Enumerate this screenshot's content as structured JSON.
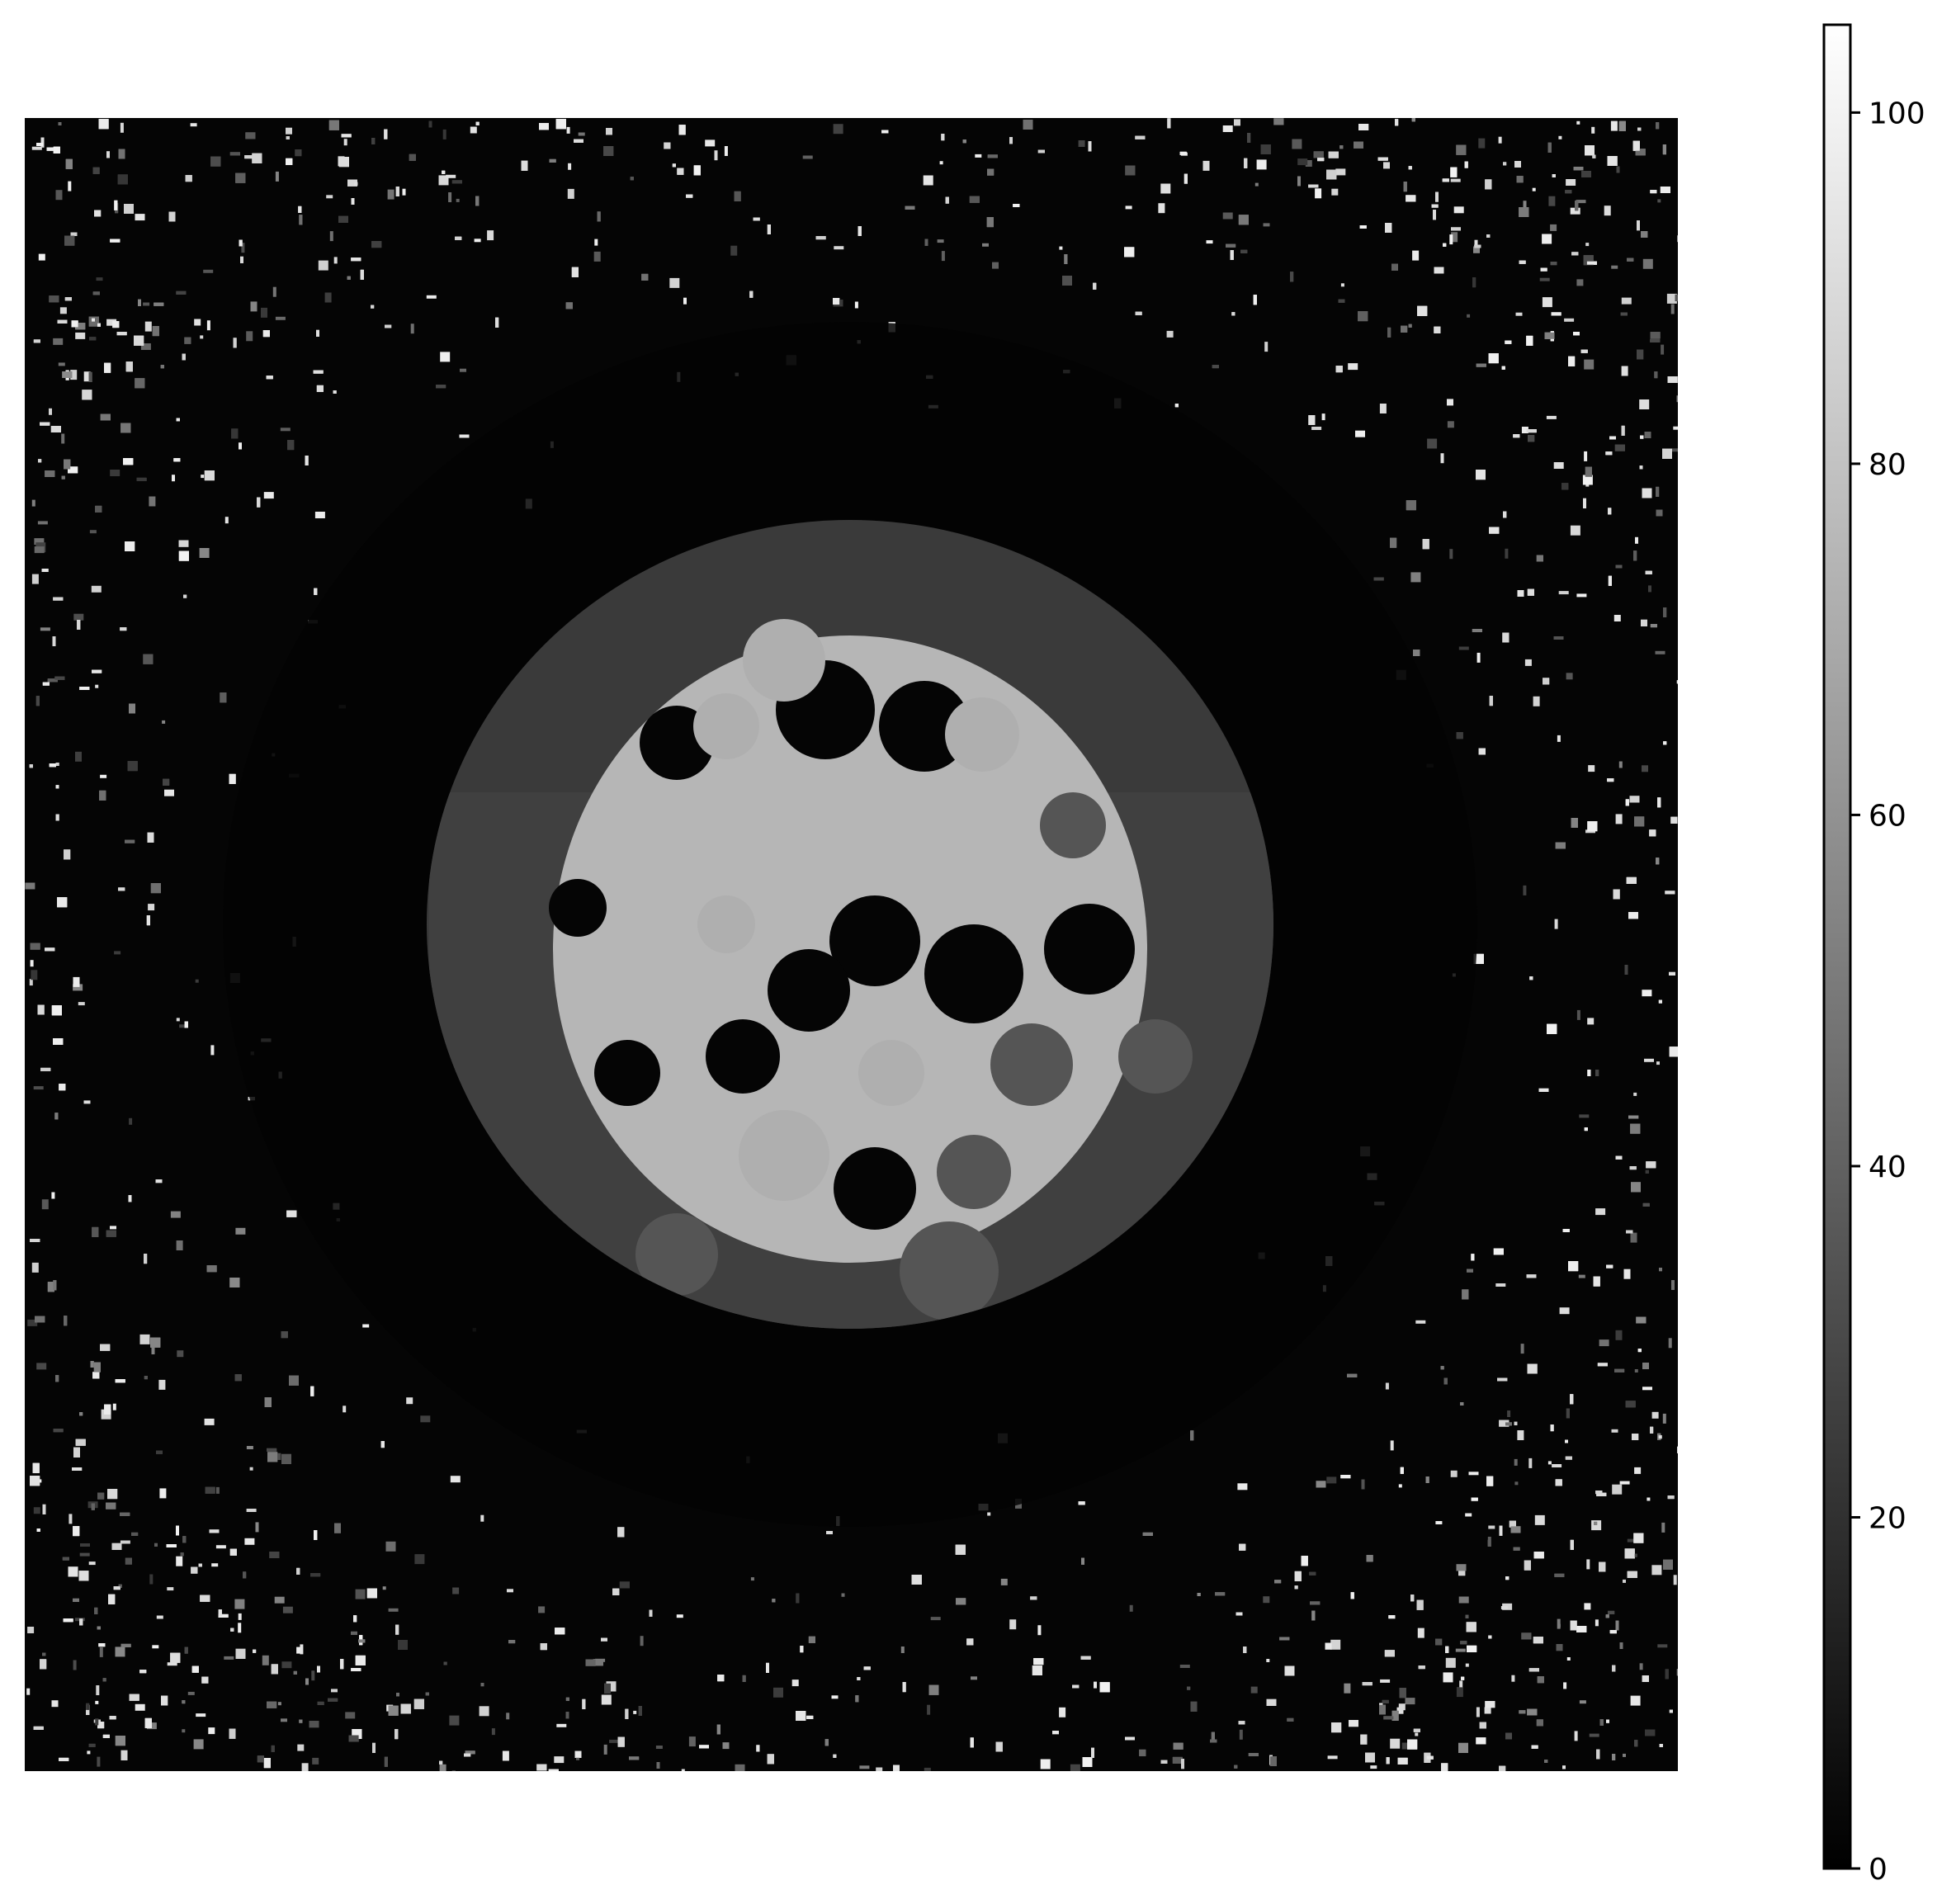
{
  "chart_data": {
    "type": "heatmap",
    "colormap": "gray",
    "colorbar": {
      "orientation": "vertical",
      "placement": "right",
      "range": [
        0,
        105
      ],
      "ticks": [
        0,
        20,
        40,
        60,
        80,
        100
      ],
      "tick_labels": [
        "0",
        "20",
        "40",
        "60",
        "80",
        "100"
      ]
    },
    "axes_visible": false,
    "image": {
      "description": "grayscale intensity map: dark circular disc with a bright band and mottled blobs in the center, black surrounding field with bright speckled texture near the edges",
      "levels": {
        "background": 2,
        "outer_ring": 10,
        "disc": 22,
        "disc_inner": 35,
        "bright_region": 72,
        "speckle": 85,
        "max_speckle": 100
      }
    }
  }
}
